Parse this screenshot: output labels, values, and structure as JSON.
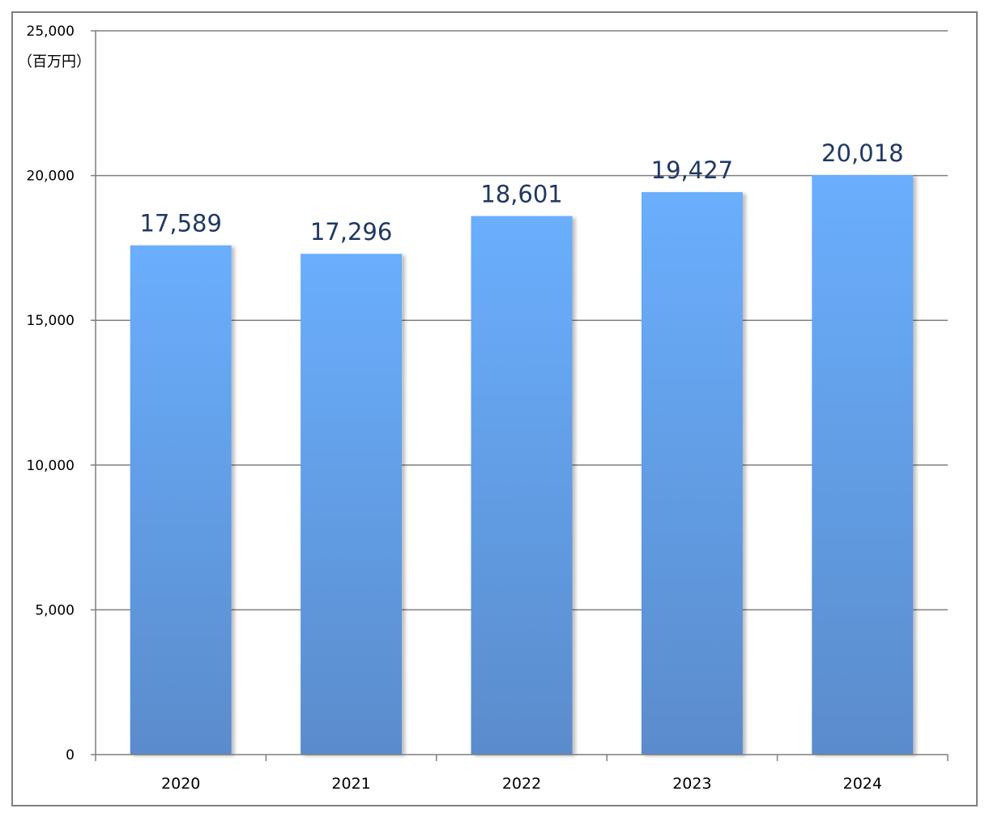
{
  "chart_data": {
    "type": "bar",
    "unit_label": "（百万円）",
    "categories": [
      "2020",
      "2021",
      "2022",
      "2023",
      "2024"
    ],
    "values": [
      17589,
      17296,
      18601,
      19427,
      20018
    ],
    "value_labels": [
      "17,589",
      "17,296",
      "18,601",
      "19,427",
      "20,018"
    ],
    "ylim": [
      0,
      25000
    ],
    "yticks": [
      0,
      5000,
      10000,
      15000,
      20000,
      25000
    ],
    "ytick_labels": [
      "0",
      "5,000",
      "10,000",
      "15,000",
      "20,000",
      "25,000"
    ],
    "grid": true,
    "legend": "none",
    "colors": {
      "bar_top": "#6aaefd",
      "bar_bottom": "#5a8ccc",
      "value_label": "#1f3864",
      "grid": "#7f7f7f",
      "axis": "#7f7f7f",
      "frame": "#7f7f7f"
    }
  }
}
